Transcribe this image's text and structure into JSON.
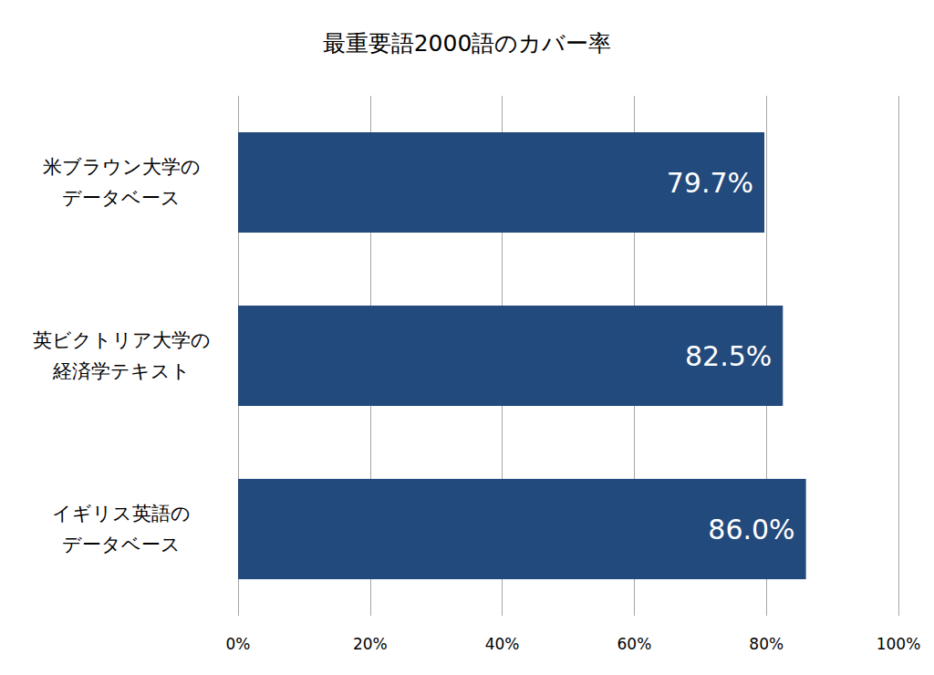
{
  "chart_data": {
    "type": "bar",
    "title": "最重要語2000語のカバー率",
    "orientation": "horizontal",
    "categories": [
      "米ブラウン大学の\nデータベース",
      "英ビクトリア大学の\n経済学テキスト",
      "イギリス英語の\nデータベース"
    ],
    "values": [
      79.7,
      82.5,
      86.0
    ],
    "value_labels": [
      "79.7%",
      "82.5%",
      "86.0%"
    ],
    "data_labels": true,
    "color": "#234a7c",
    "xlim": [
      0,
      100
    ],
    "xticks": [
      {
        "value": 0,
        "label": "0%"
      },
      {
        "value": 20,
        "label": "20%"
      },
      {
        "value": 40,
        "label": "40%"
      },
      {
        "value": 60,
        "label": "60%"
      },
      {
        "value": 80,
        "label": "80%"
      },
      {
        "value": 100,
        "label": "100%"
      }
    ],
    "grid": true
  }
}
